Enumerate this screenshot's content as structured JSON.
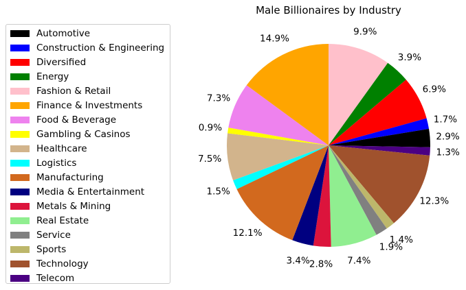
{
  "chart_data": {
    "type": "pie",
    "title": "Male Billionaires by Industry",
    "legend_position": "left",
    "start_angle_deg": 90,
    "direction": "clockwise",
    "slices": [
      {
        "label": "Fashion & Retail",
        "value": 9.9,
        "pct_label": "9.9%",
        "color": "#ffc0cb"
      },
      {
        "label": "Energy",
        "value": 3.9,
        "pct_label": "3.9%",
        "color": "#008000"
      },
      {
        "label": "Diversified",
        "value": 6.9,
        "pct_label": "6.9%",
        "color": "#ff0000"
      },
      {
        "label": "Construction & Engineering",
        "value": 1.7,
        "pct_label": "1.7%",
        "color": "#0000ff"
      },
      {
        "label": "Automotive",
        "value": 2.9,
        "pct_label": "2.9%",
        "color": "#000000"
      },
      {
        "label": "Telecom",
        "value": 1.3,
        "pct_label": "1.3%",
        "color": "#4b0082"
      },
      {
        "label": "Technology",
        "value": 12.3,
        "pct_label": "12.3%",
        "color": "#a0522d"
      },
      {
        "label": "Sports",
        "value": 1.4,
        "pct_label": "1.4%",
        "color": "#bdb76b"
      },
      {
        "label": "Service",
        "value": 1.9,
        "pct_label": "1.9%",
        "color": "#808080"
      },
      {
        "label": "Real Estate",
        "value": 7.4,
        "pct_label": "7.4%",
        "color": "#90ee90"
      },
      {
        "label": "Metals & Mining",
        "value": 2.8,
        "pct_label": "2.8%",
        "color": "#dc143c"
      },
      {
        "label": "Media & Entertainment",
        "value": 3.4,
        "pct_label": "3.4%",
        "color": "#000080"
      },
      {
        "label": "Manufacturing",
        "value": 12.1,
        "pct_label": "12.1%",
        "color": "#d2691e"
      },
      {
        "label": "Logistics",
        "value": 1.5,
        "pct_label": "1.5%",
        "color": "#00ffff"
      },
      {
        "label": "Healthcare",
        "value": 7.5,
        "pct_label": "7.5%",
        "color": "#d2b48c"
      },
      {
        "label": "Gambling & Casinos",
        "value": 0.9,
        "pct_label": "0.9%",
        "color": "#ffff00"
      },
      {
        "label": "Food & Beverage",
        "value": 7.3,
        "pct_label": "7.3%",
        "color": "#ee82ee"
      },
      {
        "label": "Finance & Investments",
        "value": 14.9,
        "pct_label": "14.9%",
        "color": "#ffa500"
      }
    ],
    "legend": [
      {
        "label": "Automotive",
        "color": "#000000"
      },
      {
        "label": "Construction & Engineering",
        "color": "#0000ff"
      },
      {
        "label": "Diversified",
        "color": "#ff0000"
      },
      {
        "label": "Energy",
        "color": "#008000"
      },
      {
        "label": "Fashion & Retail",
        "color": "#ffc0cb"
      },
      {
        "label": "Finance & Investments",
        "color": "#ffa500"
      },
      {
        "label": "Food & Beverage",
        "color": "#ee82ee"
      },
      {
        "label": "Gambling & Casinos",
        "color": "#ffff00"
      },
      {
        "label": "Healthcare",
        "color": "#d2b48c"
      },
      {
        "label": "Logistics",
        "color": "#00ffff"
      },
      {
        "label": "Manufacturing",
        "color": "#d2691e"
      },
      {
        "label": "Media & Entertainment",
        "color": "#000080"
      },
      {
        "label": "Metals & Mining",
        "color": "#dc143c"
      },
      {
        "label": "Real Estate",
        "color": "#90ee90"
      },
      {
        "label": "Service",
        "color": "#808080"
      },
      {
        "label": "Sports",
        "color": "#bdb76b"
      },
      {
        "label": "Technology",
        "color": "#a0522d"
      },
      {
        "label": "Telecom",
        "color": "#4b0082"
      }
    ]
  }
}
